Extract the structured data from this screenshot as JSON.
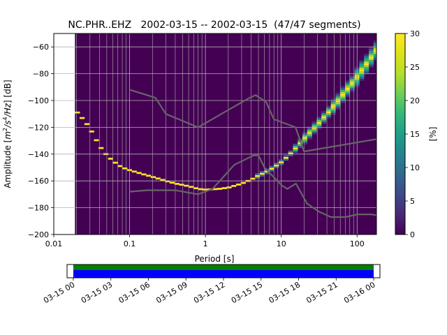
{
  "chart_data": {
    "type": "heatmap",
    "title": "NC.PHR..EHZ   2002-03-15 -- 2002-03-15  (47/47 segments)",
    "xlabel": "Period [s]",
    "ylabel_prefix": "Amplitude [",
    "ylabel_units": [
      "m",
      "2",
      "/s",
      "4",
      "/Hz",
      "] [dB]"
    ],
    "x_scale": "log",
    "xlim": [
      0.01,
      180
    ],
    "ylim": [
      -200,
      -50
    ],
    "x_ticks": [
      {
        "value": 0.01,
        "label": "0.01"
      },
      {
        "value": 0.1,
        "label": "0.1"
      },
      {
        "value": 1,
        "label": "1"
      },
      {
        "value": 10,
        "label": "10"
      },
      {
        "value": 100,
        "label": "100"
      }
    ],
    "y_ticks": [
      {
        "value": -60,
        "label": "−60"
      },
      {
        "value": -80,
        "label": "−80"
      },
      {
        "value": -100,
        "label": "−100"
      },
      {
        "value": -120,
        "label": "−120"
      },
      {
        "value": -140,
        "label": "−140"
      },
      {
        "value": -160,
        "label": "−160"
      },
      {
        "value": -180,
        "label": "−180"
      },
      {
        "value": -200,
        "label": "−200"
      }
    ],
    "data_period_min": 0.019,
    "grid": true,
    "colormap": "viridis",
    "background_color": "#440154",
    "colorbar": {
      "label": "[%]",
      "range": [
        0,
        30
      ],
      "ticks": [
        {
          "value": 0,
          "label": "0"
        },
        {
          "value": 5,
          "label": "5"
        },
        {
          "value": 10,
          "label": "10"
        },
        {
          "value": 15,
          "label": "15"
        },
        {
          "value": 20,
          "label": "20"
        },
        {
          "value": 25,
          "label": "25"
        },
        {
          "value": 30,
          "label": "30"
        }
      ]
    },
    "mode_curve": [
      [
        0.019,
        -107
      ],
      [
        0.022,
        -111
      ],
      [
        0.026,
        -116
      ],
      [
        0.03,
        -121
      ],
      [
        0.035,
        -128
      ],
      [
        0.04,
        -134
      ],
      [
        0.05,
        -141
      ],
      [
        0.06,
        -145
      ],
      [
        0.07,
        -148
      ],
      [
        0.08,
        -150
      ],
      [
        0.1,
        -152
      ],
      [
        0.15,
        -155
      ],
      [
        0.2,
        -157
      ],
      [
        0.3,
        -160
      ],
      [
        0.4,
        -162
      ],
      [
        0.5,
        -163
      ],
      [
        0.6,
        -164
      ],
      [
        0.7,
        -165
      ],
      [
        0.8,
        -166
      ],
      [
        1,
        -166.5
      ],
      [
        1.5,
        -166
      ],
      [
        2,
        -165
      ],
      [
        3,
        -162
      ],
      [
        4,
        -159
      ],
      [
        5,
        -156
      ],
      [
        7,
        -152
      ],
      [
        10,
        -146
      ],
      [
        13,
        -140
      ],
      [
        17,
        -133
      ],
      [
        22,
        -126
      ],
      [
        30,
        -118
      ],
      [
        40,
        -110
      ],
      [
        55,
        -101
      ],
      [
        70,
        -93
      ],
      [
        90,
        -86
      ],
      [
        110,
        -79
      ],
      [
        140,
        -71
      ],
      [
        175,
        -63
      ]
    ],
    "noise_models": [
      {
        "points": [
          [
            0.1,
            -92
          ],
          [
            0.17,
            -96
          ],
          [
            0.22,
            -98
          ],
          [
            0.3,
            -110
          ],
          [
            0.8,
            -120
          ],
          [
            3.8,
            -98
          ],
          [
            4.6,
            -96
          ],
          [
            6.3,
            -101
          ],
          [
            8.0,
            -114
          ],
          [
            15.4,
            -120
          ],
          [
            20,
            -138
          ],
          [
            354,
            -126
          ]
        ]
      },
      {
        "points": [
          [
            0.1,
            -168
          ],
          [
            0.17,
            -167
          ],
          [
            0.4,
            -167
          ],
          [
            0.8,
            -170
          ],
          [
            1.24,
            -166
          ],
          [
            2.4,
            -148
          ],
          [
            4.3,
            -141
          ],
          [
            5.0,
            -141
          ],
          [
            6.0,
            -150
          ],
          [
            10,
            -163
          ],
          [
            12,
            -166
          ],
          [
            15.6,
            -162
          ],
          [
            21.9,
            -177
          ],
          [
            31.6,
            -183
          ],
          [
            45,
            -187
          ],
          [
            70,
            -187
          ],
          [
            101,
            -185
          ],
          [
            154,
            -185
          ],
          [
            200,
            -186
          ]
        ]
      }
    ],
    "time_axis": {
      "tick_labels": [
        "03-15 00",
        "03-15 03",
        "03-15 06",
        "03-15 09",
        "03-15 12",
        "03-15 15",
        "03-15 18",
        "03-15 21",
        "03-16 00"
      ],
      "range_hours": [
        -0.5,
        24.5
      ],
      "coverage_hours": [
        0,
        24
      ],
      "coverage_colors": {
        "top": "#008000",
        "bottom": "#0000ff"
      }
    }
  }
}
